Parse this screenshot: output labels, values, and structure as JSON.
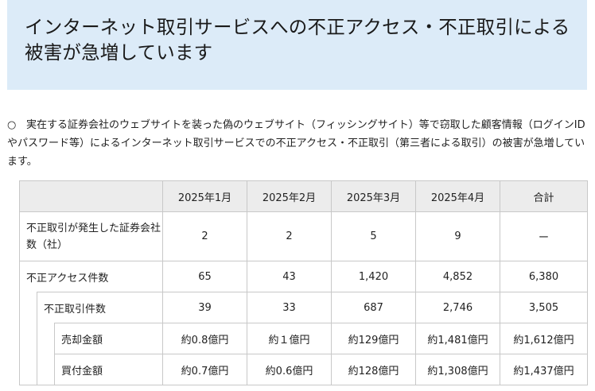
{
  "header": {
    "title": "インターネット取引サービスへの不正アクセス・不正取引による被害が急増しています"
  },
  "intro": {
    "bullet": "○",
    "text": "実在する証券会社のウェブサイトを装った偽のウェブサイト（フィッシングサイト）等で窃取した顧客情報（ログインIDやパスワード等）によるインターネット取引サービスでの不正アクセス・不正取引（第三者による取引）の被害が急増しています。"
  },
  "table": {
    "columns": [
      "2025年1月",
      "2025年2月",
      "2025年3月",
      "2025年4月",
      "合計"
    ],
    "rows": [
      {
        "label": "不正取引が発生した証券会社数（社）",
        "values": [
          "2",
          "2",
          "5",
          "9",
          "ー"
        ]
      },
      {
        "label": "不正アクセス件数",
        "values": [
          "65",
          "43",
          "1,420",
          "4,852",
          "6,380"
        ]
      },
      {
        "label": "不正取引件数",
        "values": [
          "39",
          "33",
          "687",
          "2,746",
          "3,505"
        ]
      },
      {
        "label": "売却金額",
        "values": [
          "約0.8億円",
          "約１億円",
          "約129億円",
          "約1,481億円",
          "約1,612億円"
        ]
      },
      {
        "label": "買付金額",
        "values": [
          "約0.7億円",
          "約0.6億円",
          "約128億円",
          "約1,308億円",
          "約1,437億円"
        ]
      }
    ]
  }
}
